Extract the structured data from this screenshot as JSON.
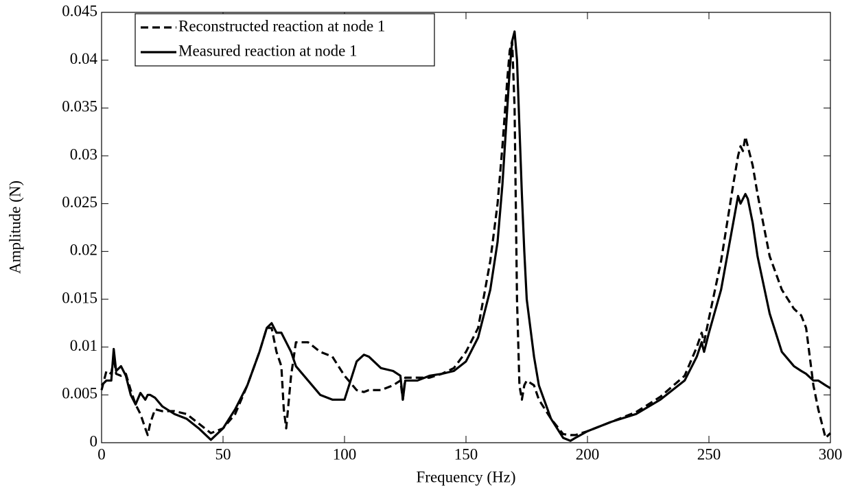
{
  "chart_data": {
    "type": "line",
    "x_label": "Frequency (Hz)",
    "y_label": "Amplitude (N)",
    "xlim": [
      0,
      300
    ],
    "xticks": [
      0,
      50,
      100,
      150,
      200,
      250,
      300
    ],
    "ylim": [
      0,
      0.045
    ],
    "yticks": [
      0,
      0.005,
      0.01,
      0.015,
      0.02,
      0.025,
      0.03,
      0.035,
      0.04,
      0.045
    ],
    "grid": false,
    "legend": "upper left",
    "x": [
      0,
      2,
      4,
      5,
      6,
      8,
      10,
      12,
      14,
      16,
      18,
      19,
      20,
      22,
      25,
      30,
      35,
      40,
      45,
      50,
      55,
      60,
      65,
      68,
      70,
      72,
      74,
      75,
      76,
      78,
      80,
      85,
      90,
      95,
      100,
      105,
      108,
      110,
      115,
      120,
      123,
      124,
      125,
      130,
      135,
      140,
      145,
      150,
      155,
      160,
      163,
      165,
      167,
      168,
      169,
      170,
      171,
      172,
      173,
      174,
      175,
      178,
      180,
      185,
      190,
      193,
      195,
      200,
      210,
      220,
      230,
      240,
      245,
      247,
      248,
      250,
      255,
      260,
      262,
      263,
      264,
      265,
      266,
      268,
      270,
      275,
      280,
      285,
      288,
      290,
      293,
      295,
      298,
      300
    ],
    "series": [
      {
        "name": "Reconstructed reaction at node 1",
        "color": "#000000",
        "linestyle": "dashed",
        "values": [
          0.0055,
          0.0075,
          0.0072,
          0.009,
          0.0072,
          0.007,
          0.0072,
          0.0055,
          0.004,
          0.003,
          0.0015,
          0.0008,
          0.002,
          0.0035,
          0.0033,
          0.0033,
          0.003,
          0.002,
          0.001,
          0.0015,
          0.003,
          0.006,
          0.0095,
          0.012,
          0.012,
          0.0095,
          0.008,
          0.0035,
          0.0015,
          0.007,
          0.0105,
          0.0105,
          0.0095,
          0.009,
          0.007,
          0.0055,
          0.0053,
          0.0055,
          0.0055,
          0.006,
          0.0065,
          0.0045,
          0.0068,
          0.0068,
          0.0068,
          0.0072,
          0.0078,
          0.0095,
          0.012,
          0.019,
          0.025,
          0.031,
          0.038,
          0.041,
          0.042,
          0.035,
          0.015,
          0.006,
          0.0045,
          0.006,
          0.0065,
          0.006,
          0.0045,
          0.0025,
          0.0009,
          0.0008,
          0.0008,
          0.0012,
          0.0022,
          0.0032,
          0.0048,
          0.007,
          0.01,
          0.0115,
          0.0105,
          0.013,
          0.019,
          0.027,
          0.03,
          0.031,
          0.0305,
          0.032,
          0.031,
          0.029,
          0.026,
          0.0195,
          0.016,
          0.014,
          0.0133,
          0.012,
          0.006,
          0.0035,
          0.0005,
          0.001
        ]
      },
      {
        "name": "Measured reaction at node 1",
        "color": "#000000",
        "linestyle": "solid",
        "values": [
          0.006,
          0.0065,
          0.0065,
          0.0098,
          0.0075,
          0.008,
          0.007,
          0.005,
          0.004,
          0.0052,
          0.0045,
          0.005,
          0.005,
          0.0047,
          0.0038,
          0.003,
          0.0025,
          0.0015,
          0.0003,
          0.0015,
          0.0035,
          0.006,
          0.0095,
          0.012,
          0.0125,
          0.0115,
          0.0115,
          0.011,
          0.0105,
          0.0095,
          0.008,
          0.0065,
          0.005,
          0.0045,
          0.0045,
          0.0085,
          0.0092,
          0.009,
          0.0078,
          0.0075,
          0.007,
          0.0045,
          0.0065,
          0.0065,
          0.007,
          0.0072,
          0.0075,
          0.0085,
          0.011,
          0.016,
          0.021,
          0.027,
          0.035,
          0.039,
          0.042,
          0.043,
          0.04,
          0.033,
          0.026,
          0.02,
          0.015,
          0.009,
          0.006,
          0.0025,
          0.0005,
          0.0002,
          0.0005,
          0.0012,
          0.0022,
          0.003,
          0.0045,
          0.0065,
          0.009,
          0.0105,
          0.0095,
          0.0115,
          0.016,
          0.023,
          0.0258,
          0.025,
          0.0255,
          0.026,
          0.0255,
          0.023,
          0.0195,
          0.0135,
          0.0095,
          0.008,
          0.0075,
          0.0072,
          0.0065,
          0.0065,
          0.006,
          0.0057
        ]
      }
    ]
  }
}
